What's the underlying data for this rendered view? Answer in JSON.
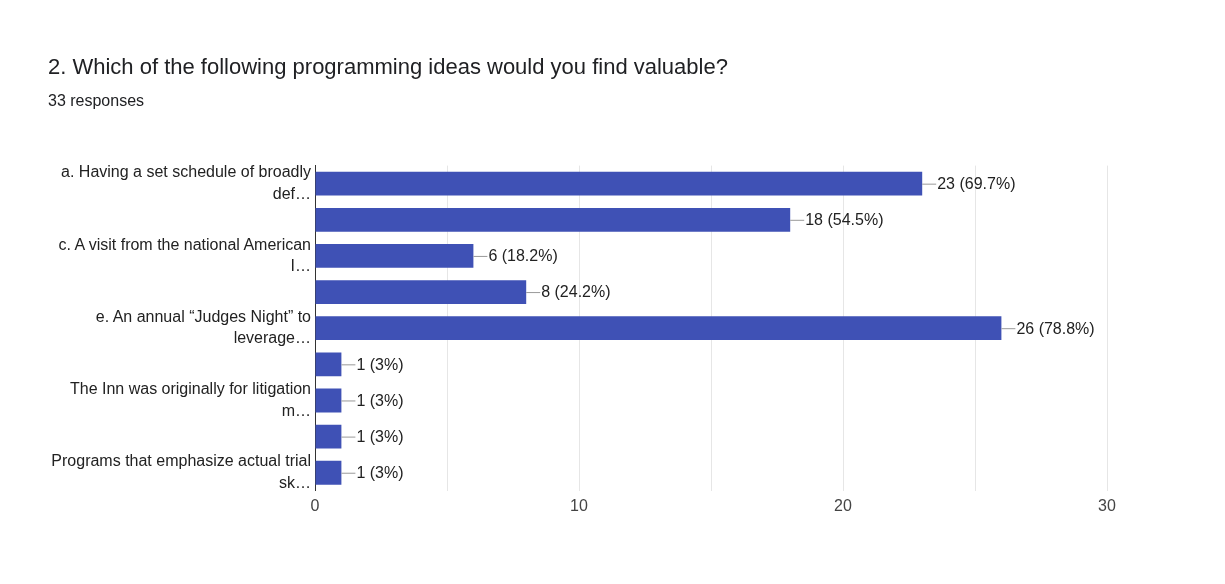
{
  "chart_data": {
    "type": "bar",
    "orientation": "horizontal",
    "title": "2. Which of the following programming ideas would you find valuable?",
    "subtitle": "33 responses",
    "categories": [
      "a. Having a set schedule of broadly def…",
      null,
      "c. A visit from the national American I…",
      null,
      "e. An annual “Judges Night” to leverage…",
      null,
      "The Inn was originally for litigation m…",
      null,
      "Programs that emphasize actual trial sk…"
    ],
    "values": [
      23,
      18,
      6,
      8,
      26,
      1,
      1,
      1,
      1
    ],
    "value_labels": [
      "23 (69.7%)",
      "18 (54.5%)",
      "6 (18.2%)",
      "8 (24.2%)",
      "26 (78.8%)",
      "1 (3%)",
      "1 (3%)",
      "1 (3%)",
      "1 (3%)"
    ],
    "color": "#3f51b5",
    "xlim": [
      0,
      30
    ],
    "xticks": [
      0,
      {
        "value": 5,
        "label": null
      },
      10,
      {
        "value": 15,
        "label": null
      },
      20,
      {
        "value": 25,
        "label": null
      },
      30
    ],
    "grid": true,
    "legend": false
  }
}
